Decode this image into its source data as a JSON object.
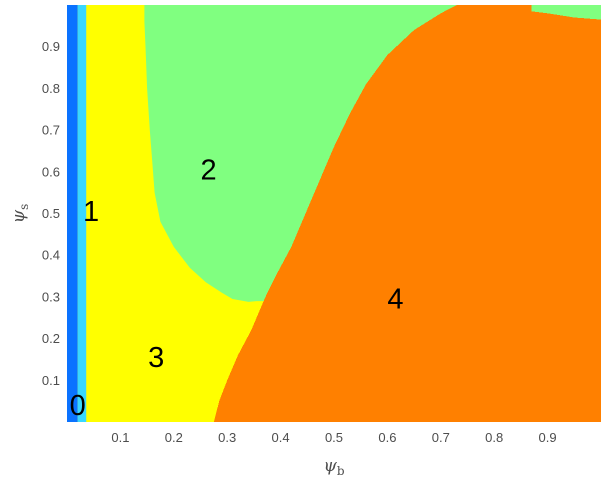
{
  "chart_data": {
    "type": "heatmap",
    "title": "",
    "xlabel": {
      "symbol": "ψ",
      "subscript": "b"
    },
    "ylabel": {
      "symbol": "ψ",
      "subscript": "s"
    },
    "xlim": [
      0.0,
      1.0
    ],
    "ylim": [
      0.0,
      1.0
    ],
    "x_ticks": [
      "0.1",
      "0.2",
      "0.3",
      "0.4",
      "0.5",
      "0.6",
      "0.7",
      "0.8",
      "0.9"
    ],
    "y_ticks": [
      "0.1",
      "0.2",
      "0.3",
      "0.4",
      "0.5",
      "0.6",
      "0.7",
      "0.8",
      "0.9"
    ],
    "grid": false,
    "regions": [
      {
        "label": "0",
        "color": "#0a72ff",
        "x_range": [
          0.0,
          0.02
        ]
      },
      {
        "label": "1",
        "color": "#39d7ff",
        "x_range": [
          0.02,
          0.036
        ]
      },
      {
        "label": "2",
        "color": "#80ff80"
      },
      {
        "label": "3",
        "color": "#ffff00"
      },
      {
        "label": "4",
        "color": "#ff8000"
      }
    ],
    "boundaries": {
      "edge_1_3": {
        "x": 0.036
      },
      "region_2_left": [
        [
          0.145,
          1.0
        ],
        [
          0.145,
          0.96
        ],
        [
          0.147,
          0.9
        ],
        [
          0.15,
          0.8
        ],
        [
          0.155,
          0.7
        ],
        [
          0.16,
          0.62
        ],
        [
          0.164,
          0.55
        ],
        [
          0.175,
          0.48
        ],
        [
          0.2,
          0.42
        ],
        [
          0.23,
          0.37
        ],
        [
          0.26,
          0.335
        ],
        [
          0.29,
          0.31
        ],
        [
          0.31,
          0.295
        ],
        [
          0.34,
          0.288
        ],
        [
          0.355,
          0.29
        ]
      ],
      "region_4_top": [
        [
          0.275,
          0.0
        ],
        [
          0.285,
          0.05
        ],
        [
          0.3,
          0.1
        ],
        [
          0.32,
          0.16
        ],
        [
          0.345,
          0.22
        ],
        [
          0.36,
          0.265
        ],
        [
          0.375,
          0.31
        ],
        [
          0.395,
          0.36
        ],
        [
          0.42,
          0.42
        ],
        [
          0.45,
          0.51
        ],
        [
          0.48,
          0.6
        ],
        [
          0.5,
          0.66
        ],
        [
          0.53,
          0.74
        ],
        [
          0.56,
          0.81
        ],
        [
          0.6,
          0.88
        ],
        [
          0.65,
          0.94
        ],
        [
          0.7,
          0.98
        ],
        [
          0.73,
          1.0
        ]
      ],
      "region_4_right_top": [
        [
          0.87,
          1.0
        ],
        [
          0.87,
          0.985
        ],
        [
          0.9,
          0.98
        ],
        [
          0.95,
          0.97
        ],
        [
          1.0,
          0.965
        ]
      ]
    },
    "annotations": [
      {
        "text": "0",
        "x": 0.02,
        "y": 0.035
      },
      {
        "text": "1",
        "x": 0.045,
        "y": 0.5
      },
      {
        "text": "2",
        "x": 0.265,
        "y": 0.6
      },
      {
        "text": "3",
        "x": 0.167,
        "y": 0.15
      },
      {
        "text": "4",
        "x": 0.615,
        "y": 0.29
      }
    ]
  }
}
